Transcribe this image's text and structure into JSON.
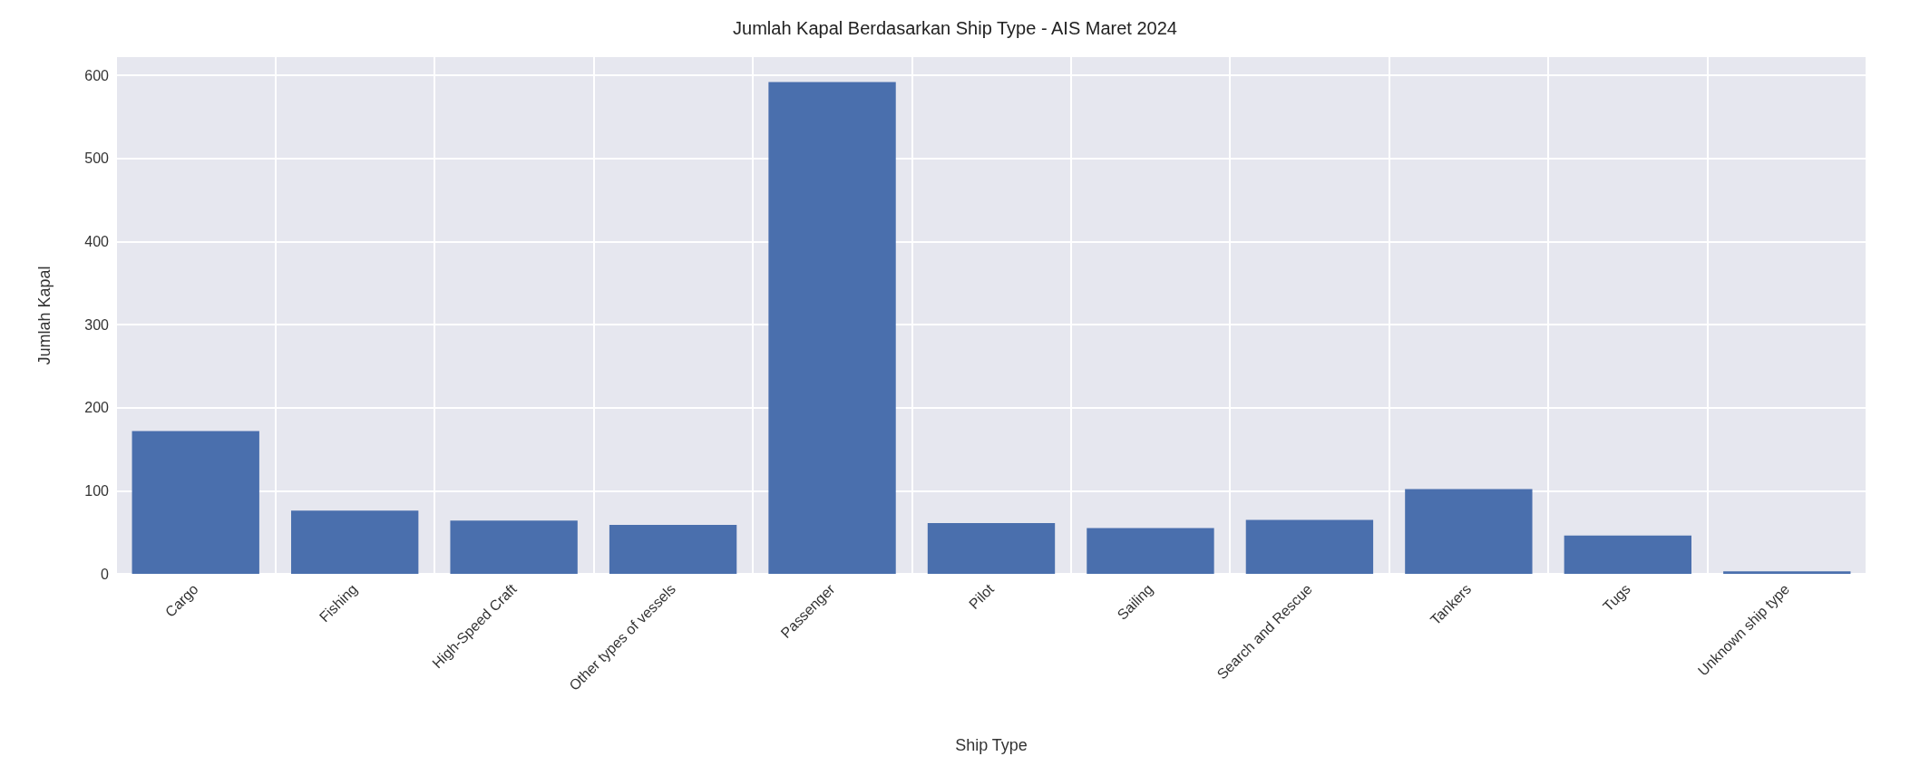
{
  "chart_data": {
    "type": "bar",
    "title": "Jumlah Kapal Berdasarkan Ship Type - AIS Maret 2024",
    "xlabel": "Ship Type",
    "ylabel": "Jumlah Kapal",
    "categories": [
      "Cargo",
      "Fishing",
      "High-Speed Craft",
      "Other types of vessels",
      "Passenger",
      "Pilot",
      "Sailing",
      "Search and Rescue",
      "Tankers",
      "Tugs",
      "Unknown ship type"
    ],
    "values": [
      172,
      76,
      64,
      59,
      592,
      61,
      55,
      65,
      102,
      46,
      3
    ],
    "color": "#4a6fad",
    "ylim": [
      0,
      622
    ],
    "yticks": [
      0,
      100,
      200,
      300,
      400,
      500,
      600
    ],
    "grid": true
  }
}
